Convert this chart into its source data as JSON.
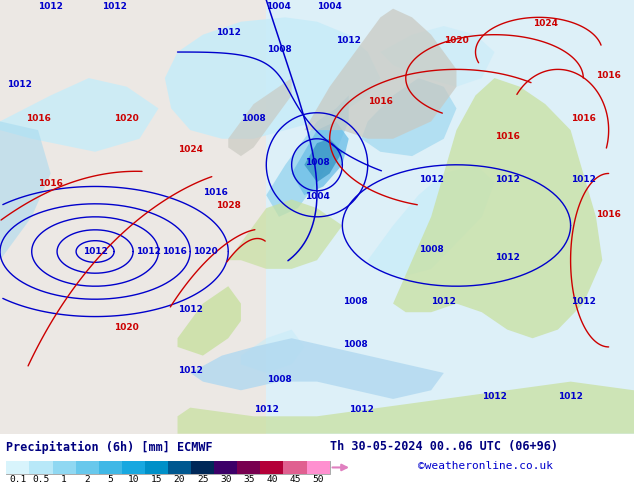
{
  "title_left": "Precipitation (6h) [mm] ECMWF",
  "title_right": "Th 30-05-2024 00..06 UTC (06+96)",
  "credit": "©weatheronline.co.uk",
  "colorbar_values": [
    "0.1",
    "0.5",
    "1",
    "2",
    "5",
    "10",
    "15",
    "20",
    "25",
    "30",
    "35",
    "40",
    "45",
    "50"
  ],
  "colorbar_colors": [
    "#d4f0f8",
    "#b0e4f4",
    "#8dd8f0",
    "#6acbec",
    "#47bee8",
    "#24b2e4",
    "#01a6e0",
    "#0070b0",
    "#003c80",
    "#400060",
    "#800060",
    "#c00060",
    "#e040a0",
    "#ff80d0"
  ],
  "bg_white": "#ffffff",
  "bg_ocean": "#c8e8f4",
  "bg_ocean_light": "#ddf0f8",
  "bg_land_green": "#c8e0a0",
  "bg_land_grey": "#c8c8c0",
  "bg_bottom": "#ffffff",
  "precip_light1": "#c8ecf8",
  "precip_light2": "#a0d8f0",
  "precip_mid": "#70c0e8",
  "precip_deep": "#3090c0",
  "precip_dark": "#1060a0",
  "isobar_blue": "#0000cc",
  "isobar_red": "#cc0000",
  "text_dark": "#000080",
  "text_blue": "#0000cc",
  "isobar_lw": 1.0,
  "isobar_fs": 6.5
}
